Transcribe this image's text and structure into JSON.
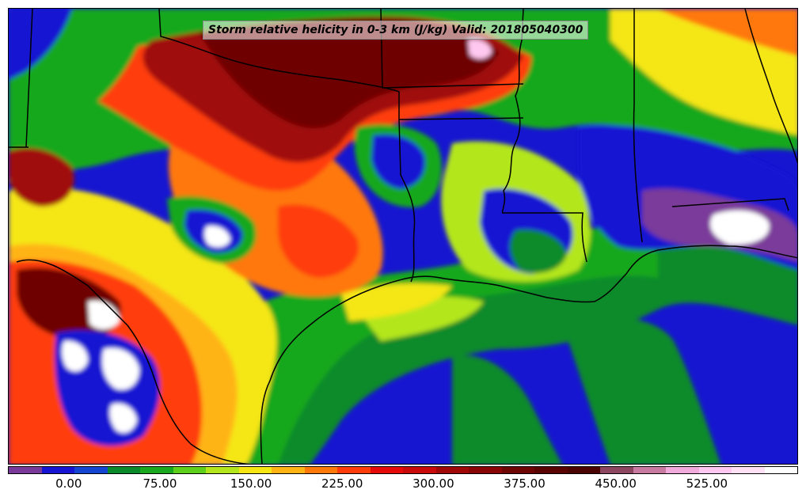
{
  "title": "Storm relative helicity in 0-3 km (J/kg) Valid: 201805040300",
  "colorbar": {
    "colors": [
      "#7a3a9a",
      "#1414d2",
      "#1446d2",
      "#0a8a2a",
      "#19a81e",
      "#5ecf1a",
      "#b4e61e",
      "#f5e614",
      "#ffb414",
      "#ff780a",
      "#ff3c0a",
      "#e60a0a",
      "#c80a0a",
      "#a00808",
      "#8a0505",
      "#6e0505",
      "#5a0303",
      "#4a0202",
      "#8c4660",
      "#c87aa0",
      "#f0aadc",
      "#ffc8f0",
      "#ffe0f5",
      "#ffffff"
    ],
    "labels": [
      "0.00",
      "75.00",
      "150.00",
      "225.00",
      "300.00",
      "375.00",
      "450.00",
      "525.00"
    ],
    "label_values": [
      0,
      75,
      150,
      225,
      300,
      375,
      450,
      525
    ],
    "min": -50,
    "max": 600
  },
  "map": {
    "background_color": "#1a1ad8",
    "border_color": "#000000"
  }
}
